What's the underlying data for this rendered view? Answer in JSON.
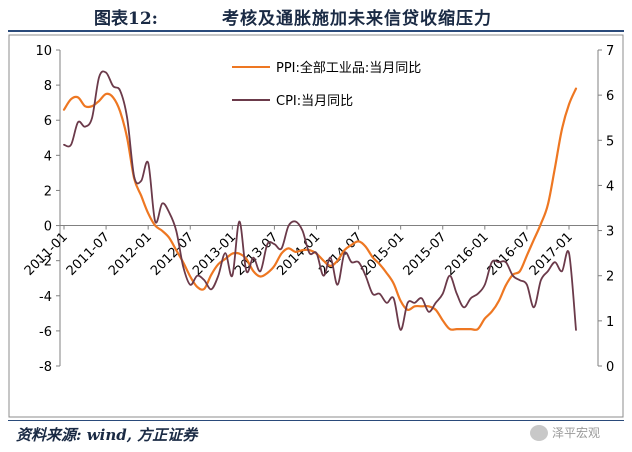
{
  "header": {
    "figure_number": "图表12:",
    "figure_title": "考核及通胀施加未来信贷收缩压力"
  },
  "footer": {
    "source": "资料来源: wind, 方正证券",
    "watermark": "泽平宏观"
  },
  "colors": {
    "ppi": "#ee7722",
    "cpi": "#6b3a4a",
    "rule": "#2a4a7a"
  },
  "chart_data": {
    "type": "line",
    "title": "",
    "xlabel": "",
    "ylabel_left": "",
    "ylabel_right": "",
    "x_tick_labels": [
      "2011-01",
      "2011-07",
      "2012-01",
      "2012-07",
      "2013-01",
      "2013-07",
      "2014-01",
      "2014-07",
      "2015-01",
      "2015-07",
      "2016-01",
      "2016-07",
      "2017-01"
    ],
    "y_left": {
      "range": [
        -8,
        10
      ],
      "ticks": [
        10,
        8,
        6,
        4,
        2,
        0,
        -2,
        -4,
        -6,
        -8
      ],
      "tick_labels": [
        "10",
        "8",
        "6",
        "4",
        "2",
        "0",
        "-2",
        "-4",
        "-6",
        "-8"
      ]
    },
    "y_right": {
      "range": [
        0,
        7
      ],
      "ticks": [
        7,
        6,
        5,
        4,
        3,
        2,
        1,
        0
      ],
      "tick_labels": [
        "7",
        "6",
        "5",
        "4",
        "3",
        "2",
        "1",
        "0"
      ]
    },
    "grid": false,
    "legend_position": "top-center",
    "series": [
      {
        "name": "PPI:全部工业品:当月同比",
        "axis": "left",
        "x": [
          "2011-01",
          "2011-02",
          "2011-03",
          "2011-04",
          "2011-05",
          "2011-06",
          "2011-07",
          "2011-08",
          "2011-09",
          "2011-10",
          "2011-11",
          "2011-12",
          "2012-01",
          "2012-02",
          "2012-03",
          "2012-04",
          "2012-05",
          "2012-06",
          "2012-07",
          "2012-08",
          "2012-09",
          "2012-10",
          "2012-11",
          "2012-12",
          "2013-01",
          "2013-02",
          "2013-03",
          "2013-04",
          "2013-05",
          "2013-06",
          "2013-07",
          "2013-08",
          "2013-09",
          "2013-10",
          "2013-11",
          "2013-12",
          "2014-01",
          "2014-02",
          "2014-03",
          "2014-04",
          "2014-05",
          "2014-06",
          "2014-07",
          "2014-08",
          "2014-09",
          "2014-10",
          "2014-11",
          "2014-12",
          "2015-01",
          "2015-02",
          "2015-03",
          "2015-04",
          "2015-05",
          "2015-06",
          "2015-07",
          "2015-08",
          "2015-09",
          "2015-10",
          "2015-11",
          "2015-12",
          "2016-01",
          "2016-02",
          "2016-03",
          "2016-04",
          "2016-05",
          "2016-06",
          "2016-07",
          "2016-08",
          "2016-09",
          "2016-10",
          "2016-11",
          "2016-12",
          "2017-01",
          "2017-02"
        ],
        "values": [
          6.6,
          7.2,
          7.3,
          6.8,
          6.8,
          7.1,
          7.5,
          7.3,
          6.5,
          5.0,
          2.7,
          1.7,
          0.7,
          0.0,
          -0.3,
          -0.7,
          -1.4,
          -2.1,
          -2.9,
          -3.5,
          -3.6,
          -2.8,
          -2.2,
          -1.9,
          -1.6,
          -1.6,
          -1.9,
          -2.6,
          -2.9,
          -2.7,
          -2.3,
          -1.6,
          -1.3,
          -1.5,
          -1.4,
          -1.4,
          -1.6,
          -2.0,
          -2.3,
          -2.0,
          -1.4,
          -1.1,
          -0.9,
          -1.2,
          -1.8,
          -2.2,
          -2.7,
          -3.3,
          -4.3,
          -4.8,
          -4.6,
          -4.6,
          -4.6,
          -4.8,
          -5.4,
          -5.9,
          -5.9,
          -5.9,
          -5.9,
          -5.9,
          -5.3,
          -4.9,
          -4.3,
          -3.4,
          -2.8,
          -2.6,
          -1.7,
          -0.8,
          0.1,
          1.2,
          3.3,
          5.5,
          6.9,
          7.8
        ]
      },
      {
        "name": "CPI:当月同比",
        "axis": "right",
        "x": [
          "2011-01",
          "2011-02",
          "2011-03",
          "2011-04",
          "2011-05",
          "2011-06",
          "2011-07",
          "2011-08",
          "2011-09",
          "2011-10",
          "2011-11",
          "2011-12",
          "2012-01",
          "2012-02",
          "2012-03",
          "2012-04",
          "2012-05",
          "2012-06",
          "2012-07",
          "2012-08",
          "2012-09",
          "2012-10",
          "2012-11",
          "2012-12",
          "2013-01",
          "2013-02",
          "2013-03",
          "2013-04",
          "2013-05",
          "2013-06",
          "2013-07",
          "2013-08",
          "2013-09",
          "2013-10",
          "2013-11",
          "2013-12",
          "2014-01",
          "2014-02",
          "2014-03",
          "2014-04",
          "2014-05",
          "2014-06",
          "2014-07",
          "2014-08",
          "2014-09",
          "2014-10",
          "2014-11",
          "2014-12",
          "2015-01",
          "2015-02",
          "2015-03",
          "2015-04",
          "2015-05",
          "2015-06",
          "2015-07",
          "2015-08",
          "2015-09",
          "2015-10",
          "2015-11",
          "2015-12",
          "2016-01",
          "2016-02",
          "2016-03",
          "2016-04",
          "2016-05",
          "2016-06",
          "2016-07",
          "2016-08",
          "2016-09",
          "2016-10",
          "2016-11",
          "2016-12",
          "2017-01",
          "2017-02"
        ],
        "values": [
          4.9,
          4.9,
          5.4,
          5.3,
          5.5,
          6.4,
          6.5,
          6.2,
          6.1,
          5.5,
          4.2,
          4.1,
          4.5,
          3.2,
          3.6,
          3.4,
          3.0,
          2.2,
          1.8,
          2.0,
          1.9,
          1.7,
          2.0,
          2.5,
          2.0,
          3.2,
          2.1,
          2.4,
          2.1,
          2.7,
          2.7,
          2.6,
          3.1,
          3.2,
          3.0,
          2.5,
          2.5,
          2.0,
          2.4,
          1.8,
          2.5,
          2.3,
          2.3,
          2.0,
          1.6,
          1.6,
          1.4,
          1.5,
          0.8,
          1.4,
          1.4,
          1.5,
          1.2,
          1.4,
          1.6,
          2.0,
          1.6,
          1.3,
          1.5,
          1.6,
          1.8,
          2.3,
          2.3,
          2.3,
          2.0,
          1.9,
          1.8,
          1.3,
          1.9,
          2.1,
          2.3,
          2.1,
          2.5,
          0.8
        ]
      }
    ]
  }
}
